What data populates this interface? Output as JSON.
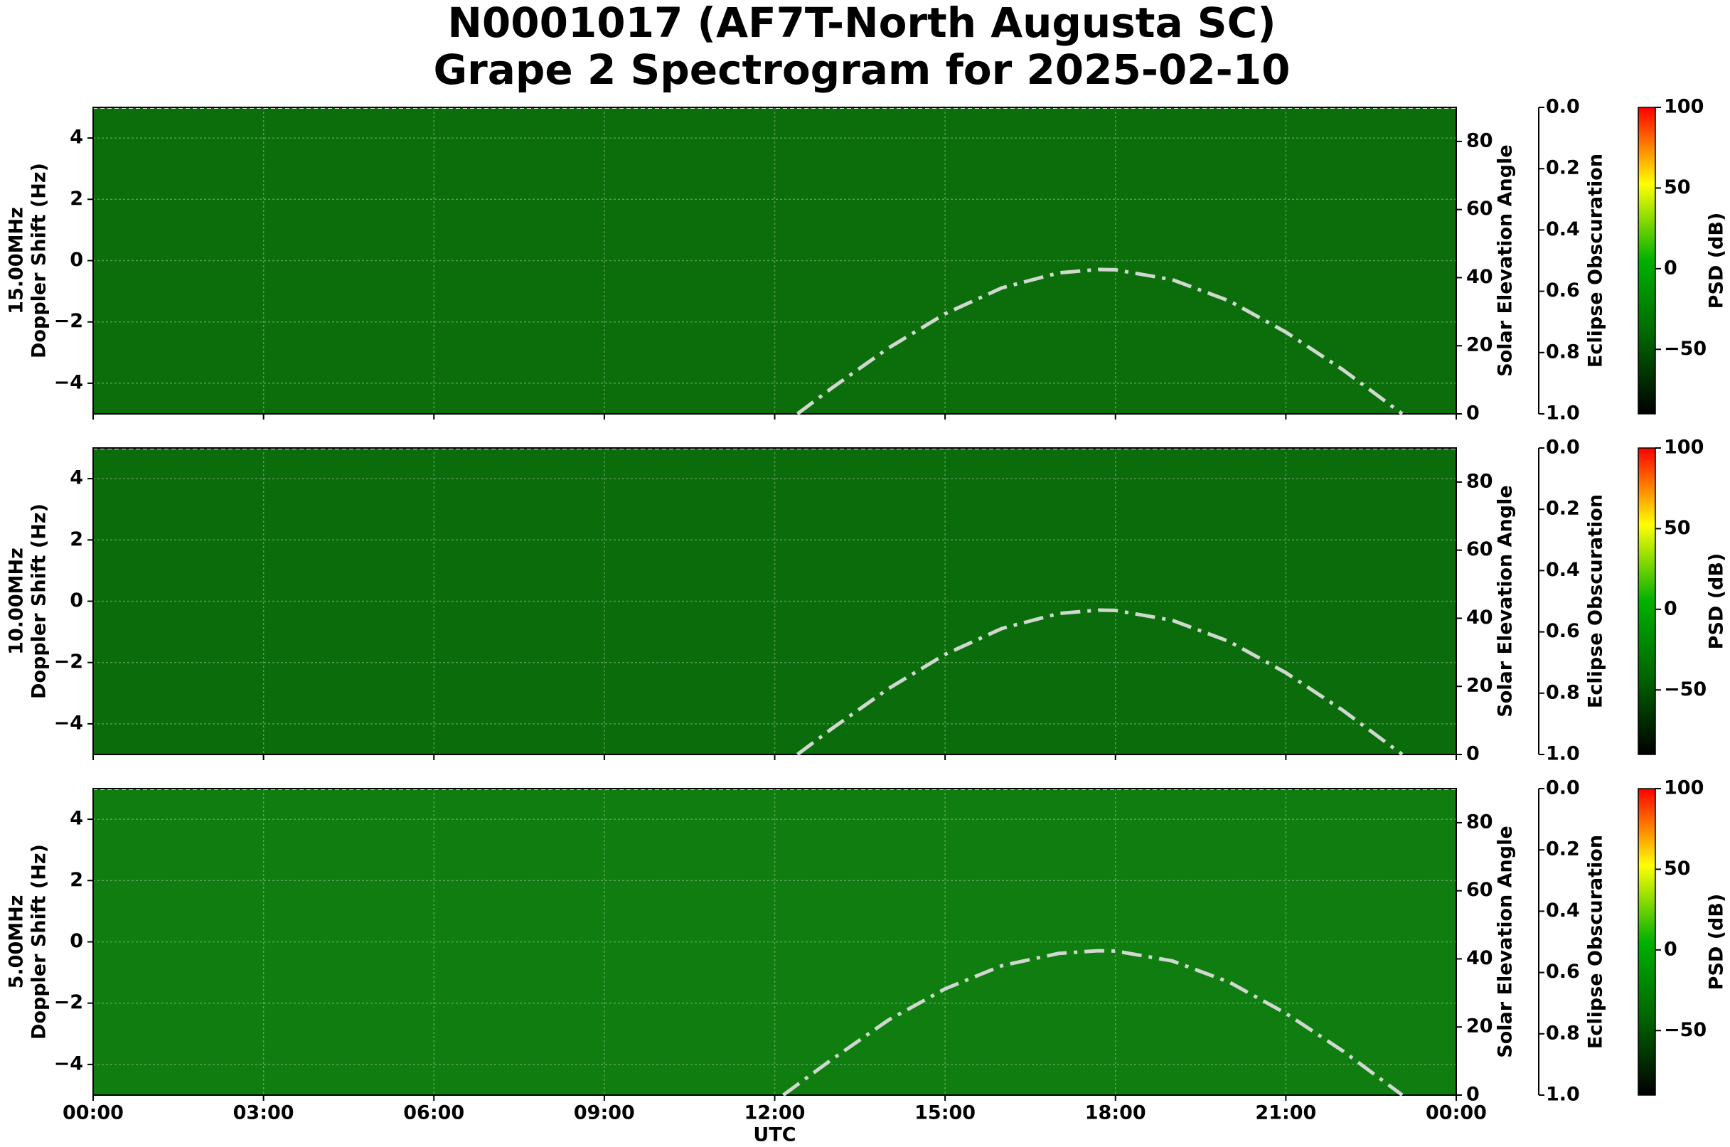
{
  "title": [
    "N0001017 (AF7T-North Augusta SC)",
    "Grape 2 Spectrogram for 2025-02-10"
  ],
  "chart_data": [
    {
      "type": "spectrogram",
      "frequency_label": "15.00MHz",
      "ylabel": "Doppler Shift (Hz)",
      "y2label": "Solar Elevation Angle",
      "y3label": "Eclipse Obscuration",
      "colorbar_label": "PSD (dB)",
      "background_color": "#0b6e0b",
      "xlim": [
        0,
        24
      ],
      "xticks": [
        0,
        3,
        6,
        9,
        12,
        15,
        18,
        21,
        24
      ],
      "ylim": [
        -5,
        5
      ],
      "yticks": [
        {
          "value": -4,
          "label": "−4"
        },
        {
          "value": -2,
          "label": "−2"
        },
        0,
        2,
        4
      ],
      "y2lim": [
        0,
        90
      ],
      "y2ticks": [
        0,
        20,
        40,
        60,
        80
      ],
      "y3lim": [
        0,
        1
      ],
      "y3ticks": [
        {
          "value": 0,
          "label": "0.0"
        },
        {
          "value": 0.2,
          "label": "0.2"
        },
        {
          "value": 0.4,
          "label": "0.4"
        },
        {
          "value": 0.6,
          "label": "0.6"
        },
        {
          "value": 0.8,
          "label": "0.8"
        },
        {
          "value": 1,
          "label": "1.0"
        }
      ],
      "clim": [
        -90,
        100
      ],
      "cticks": [
        {
          "value": -50,
          "label": "−50"
        },
        0,
        50,
        100
      ],
      "colormap": [
        "#000000",
        "#006400",
        "#00b000",
        "#ffff00",
        "#ff0000"
      ],
      "grid": true,
      "series": [
        {
          "axis": "y2",
          "color": "#d0d8d0",
          "x": [
            12.4,
            13,
            14,
            15,
            16,
            17,
            17.7,
            18,
            19,
            20,
            21,
            22,
            23.05
          ],
          "values": [
            0,
            7.5,
            19.3,
            29.4,
            37.0,
            41.4,
            42.4,
            42.3,
            39.4,
            33.2,
            24.0,
            13.0,
            0
          ]
        }
      ]
    },
    {
      "type": "spectrogram",
      "frequency_label": "10.00MHz",
      "ylabel": "Doppler Shift (Hz)",
      "y2label": "Solar Elevation Angle",
      "y3label": "Eclipse Obscuration",
      "colorbar_label": "PSD (dB)",
      "background_color": "#0b6c0b",
      "xlim": [
        0,
        24
      ],
      "xticks": [
        0,
        3,
        6,
        9,
        12,
        15,
        18,
        21,
        24
      ],
      "ylim": [
        -5,
        5
      ],
      "yticks": [
        {
          "value": -4,
          "label": "−4"
        },
        {
          "value": -2,
          "label": "−2"
        },
        0,
        2,
        4
      ],
      "y2lim": [
        0,
        90
      ],
      "y2ticks": [
        0,
        20,
        40,
        60,
        80
      ],
      "y3lim": [
        0,
        1
      ],
      "y3ticks": [
        {
          "value": 0,
          "label": "0.0"
        },
        {
          "value": 0.2,
          "label": "0.2"
        },
        {
          "value": 0.4,
          "label": "0.4"
        },
        {
          "value": 0.6,
          "label": "0.6"
        },
        {
          "value": 0.8,
          "label": "0.8"
        },
        {
          "value": 1,
          "label": "1.0"
        }
      ],
      "clim": [
        -90,
        100
      ],
      "cticks": [
        {
          "value": -50,
          "label": "−50"
        },
        0,
        50,
        100
      ],
      "colormap": [
        "#000000",
        "#006400",
        "#00b000",
        "#ffff00",
        "#ff0000"
      ],
      "grid": true,
      "series": [
        {
          "axis": "y2",
          "color": "#d0d8d0",
          "x": [
            12.4,
            13,
            14,
            15,
            16,
            17,
            17.7,
            18,
            19,
            20,
            21,
            22,
            23.05
          ],
          "values": [
            0,
            7.5,
            19.3,
            29.4,
            37.0,
            41.4,
            42.4,
            42.3,
            39.4,
            33.2,
            24.0,
            13.0,
            0
          ]
        }
      ]
    },
    {
      "type": "spectrogram",
      "frequency_label": "5.00MHz",
      "ylabel": "Doppler Shift (Hz)",
      "y2label": "Solar Elevation Angle",
      "y3label": "Eclipse Obscuration",
      "colorbar_label": "PSD (dB)",
      "xlabel": "UTC",
      "background_color": "#0f7d0f",
      "xlim": [
        0,
        24
      ],
      "xticks": [
        {
          "value": 0,
          "label": "00:00"
        },
        {
          "value": 3,
          "label": "03:00"
        },
        {
          "value": 6,
          "label": "06:00"
        },
        {
          "value": 9,
          "label": "09:00"
        },
        {
          "value": 12,
          "label": "12:00"
        },
        {
          "value": 15,
          "label": "15:00"
        },
        {
          "value": 18,
          "label": "18:00"
        },
        {
          "value": 21,
          "label": "21:00"
        },
        {
          "value": 24,
          "label": "00:00"
        }
      ],
      "ylim": [
        -5,
        5
      ],
      "yticks": [
        {
          "value": -4,
          "label": "−4"
        },
        {
          "value": -2,
          "label": "−2"
        },
        0,
        2,
        4
      ],
      "y2lim": [
        0,
        90
      ],
      "y2ticks": [
        0,
        20,
        40,
        60,
        80
      ],
      "y3lim": [
        0,
        1
      ],
      "y3ticks": [
        {
          "value": 0,
          "label": "0.0"
        },
        {
          "value": 0.2,
          "label": "0.2"
        },
        {
          "value": 0.4,
          "label": "0.4"
        },
        {
          "value": 0.6,
          "label": "0.6"
        },
        {
          "value": 0.8,
          "label": "0.8"
        },
        {
          "value": 1,
          "label": "1.0"
        }
      ],
      "clim": [
        -90,
        100
      ],
      "cticks": [
        {
          "value": -50,
          "label": "−50"
        },
        0,
        50,
        100
      ],
      "colormap": [
        "#000000",
        "#006400",
        "#00b000",
        "#ffff00",
        "#ff0000"
      ],
      "grid": true,
      "series": [
        {
          "axis": "y2",
          "color": "#d0d8d0",
          "x": [
            12.15,
            13,
            14,
            15,
            16,
            17,
            17.7,
            18,
            19,
            20,
            21,
            22,
            23.05
          ],
          "values": [
            0,
            10.4,
            22.0,
            31.2,
            38.0,
            41.6,
            42.4,
            42.3,
            39.4,
            33.2,
            24.0,
            13.0,
            0
          ]
        }
      ]
    }
  ]
}
